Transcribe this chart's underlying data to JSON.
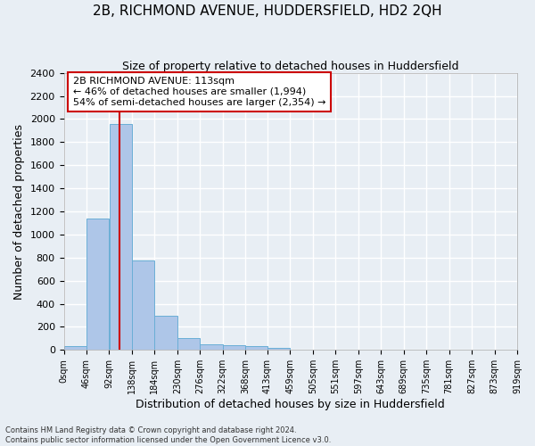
{
  "title": "2B, RICHMOND AVENUE, HUDDERSFIELD, HD2 2QH",
  "subtitle": "Size of property relative to detached houses in Huddersfield",
  "xlabel": "Distribution of detached houses by size in Huddersfield",
  "ylabel": "Number of detached properties",
  "footnote1": "Contains HM Land Registry data © Crown copyright and database right 2024.",
  "footnote2": "Contains public sector information licensed under the Open Government Licence v3.0.",
  "bin_edges": [
    0,
    46,
    92,
    138,
    184,
    230,
    276,
    322,
    368,
    413,
    459,
    505,
    551,
    597,
    643,
    689,
    735,
    781,
    827,
    873,
    919
  ],
  "bar_heights": [
    35,
    1135,
    1960,
    775,
    300,
    105,
    50,
    40,
    30,
    20,
    0,
    0,
    0,
    0,
    0,
    0,
    0,
    0,
    0,
    0
  ],
  "bar_color": "#aec6e8",
  "bar_edgecolor": "#6aaed6",
  "vline_x": 113,
  "annotation_line1": "2B RICHMOND AVENUE: 113sqm",
  "annotation_line2": "← 46% of detached houses are smaller (1,994)",
  "annotation_line3": "54% of semi-detached houses are larger (2,354) →",
  "annotation_box_color": "#ffffff",
  "annotation_box_edgecolor": "#cc0000",
  "ylim": [
    0,
    2400
  ],
  "bg_color": "#e8eef4",
  "grid_color": "#ffffff",
  "title_fontsize": 11,
  "subtitle_fontsize": 9,
  "xlabel_fontsize": 9,
  "ylabel_fontsize": 9,
  "annot_fontsize": 8,
  "tick_fontsize": 7,
  "ytick_fontsize": 8,
  "tick_labels": [
    "0sqm",
    "46sqm",
    "92sqm",
    "138sqm",
    "184sqm",
    "230sqm",
    "276sqm",
    "322sqm",
    "368sqm",
    "413sqm",
    "459sqm",
    "505sqm",
    "551sqm",
    "597sqm",
    "643sqm",
    "689sqm",
    "735sqm",
    "781sqm",
    "827sqm",
    "873sqm",
    "919sqm"
  ]
}
